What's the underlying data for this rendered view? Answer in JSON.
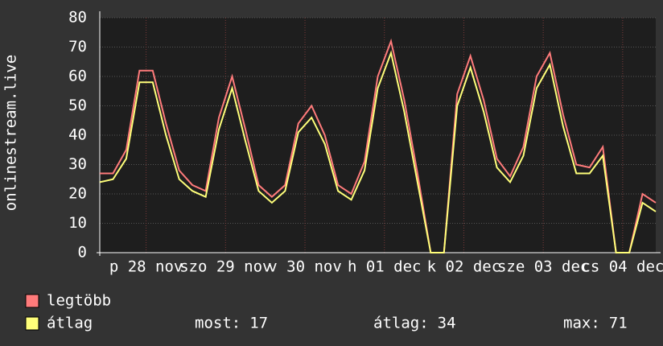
{
  "chart_data": {
    "type": "line",
    "y_label": "onlinestream.live",
    "x": [
      0,
      4,
      8,
      12,
      16,
      20,
      24,
      28,
      32,
      36,
      40,
      44,
      48,
      52,
      56,
      60,
      64,
      68,
      72,
      76,
      80,
      84,
      88,
      92,
      96,
      100,
      104,
      108,
      112,
      116,
      120,
      124,
      128,
      132,
      136,
      140,
      144,
      148,
      152,
      156,
      160,
      164,
      168
    ],
    "xlim": [
      0,
      168
    ],
    "xticks": [
      {
        "value": 14,
        "label": "p 28 nov"
      },
      {
        "value": 38,
        "label": "szo 29 nov"
      },
      {
        "value": 62,
        "label": "v 30 nov"
      },
      {
        "value": 86,
        "label": "h 01 dec"
      },
      {
        "value": 110,
        "label": "k 02 dec"
      },
      {
        "value": 134,
        "label": "sze 03 dec"
      },
      {
        "value": 158,
        "label": "cs 04 dec"
      }
    ],
    "ylim": [
      0,
      80
    ],
    "yticks": [
      0,
      10,
      20,
      30,
      40,
      50,
      60,
      70,
      80
    ],
    "grid": true,
    "series": [
      {
        "name": "legtöbb",
        "color": "#ff7b7b",
        "values": [
          27,
          27,
          35,
          62,
          62,
          44,
          28,
          23,
          21,
          46,
          60,
          42,
          23,
          19,
          23,
          44,
          50,
          40,
          23,
          20,
          31,
          60,
          72,
          52,
          27,
          0,
          0,
          54,
          67,
          52,
          32,
          26,
          36,
          60,
          68,
          47,
          30,
          29,
          36,
          0,
          0,
          20,
          17
        ]
      },
      {
        "name": "átlag",
        "color": "#ffff7a",
        "values": [
          24,
          25,
          32,
          58,
          58,
          40,
          25,
          21,
          19,
          42,
          56,
          38,
          21,
          17,
          21,
          41,
          46,
          37,
          21,
          18,
          28,
          56,
          68,
          48,
          24,
          0,
          0,
          50,
          63,
          48,
          29,
          24,
          33,
          56,
          64,
          43,
          27,
          27,
          33,
          0,
          0,
          17,
          14
        ]
      }
    ],
    "stats": [
      {
        "label": "most:",
        "value": 17
      },
      {
        "label": "átlag:",
        "value": 34
      },
      {
        "label": "max:",
        "value": 71
      }
    ]
  }
}
